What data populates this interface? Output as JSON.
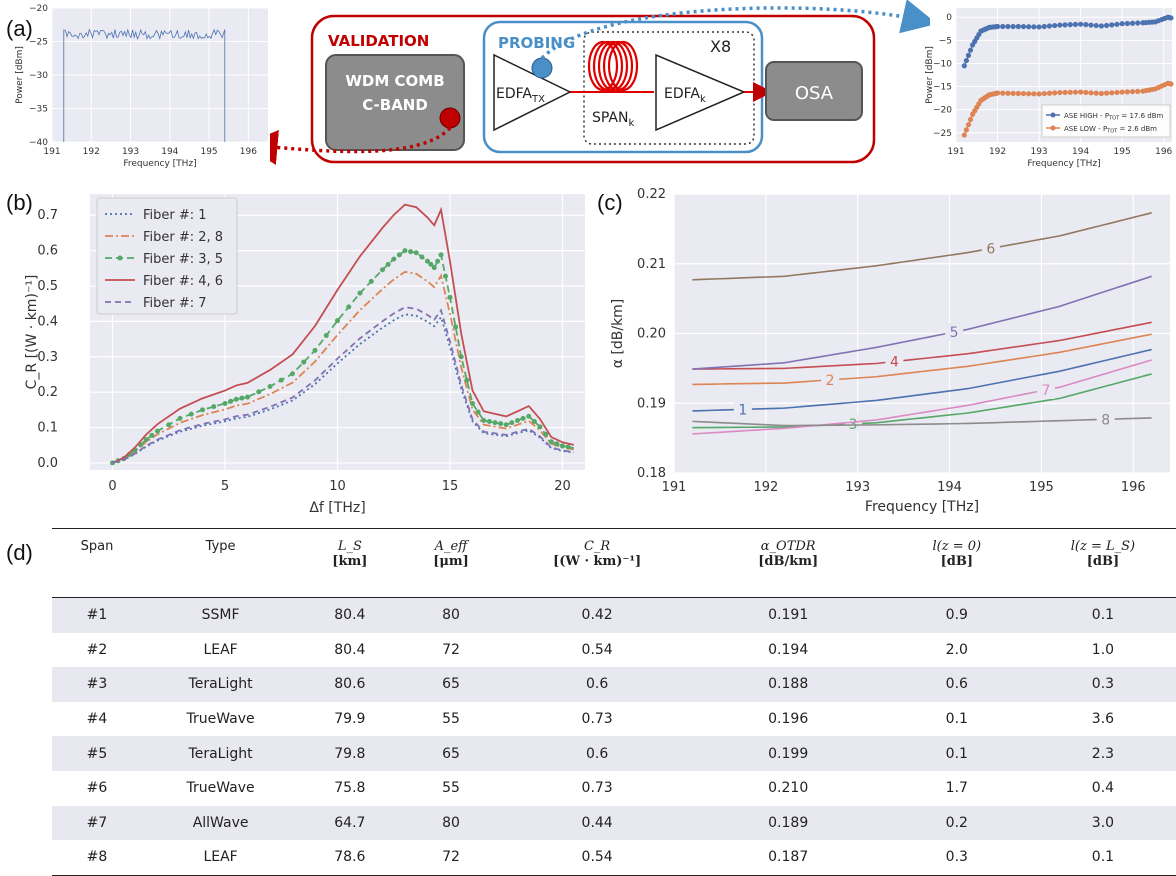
{
  "panel_labels": {
    "a": "(a)",
    "b": "(b)",
    "c": "(c)",
    "d": "(d)"
  },
  "setup": {
    "validation": "VALIDATION",
    "probing": "PROBING",
    "comb_line1": "WDM COMB",
    "comb_line2": "C-BAND",
    "edfa_tx": "EDFA",
    "edfa_tx_sub": "TX",
    "span": "SPAN",
    "span_sub": "k",
    "edfa_k": "EDFA",
    "edfa_k_sub": "k",
    "x8": "X8",
    "osa": "OSA",
    "colors": {
      "validation": "#c00000",
      "probing": "#4a90c8"
    }
  },
  "chart_data": [
    {
      "id": "a-left",
      "type": "line",
      "xlabel": "Frequency [THz]",
      "ylabel": "Power [dBm]",
      "xlim": [
        191,
        196.5
      ],
      "ylim": [
        -40,
        -20
      ],
      "xticks": [
        "191",
        "192",
        "193",
        "194",
        "195",
        "196"
      ],
      "yticks": [
        "−20",
        "−25",
        "−30",
        "−35",
        "−40"
      ],
      "series": [
        {
          "color": "#4c72b0",
          "x": [
            191.3,
            191.3,
            195.4,
            195.4
          ],
          "y": [
            -40,
            -23.3,
            -23.3,
            -40
          ]
        }
      ]
    },
    {
      "id": "a-right",
      "type": "line",
      "xlabel": "Frequency [THz]",
      "ylabel": "Power [dBm]",
      "xlim": [
        191,
        196.2
      ],
      "ylim": [
        -27,
        2
      ],
      "xticks": [
        "191",
        "192",
        "193",
        "194",
        "195",
        "196"
      ],
      "yticks": [
        "0",
        "−5",
        "−10",
        "−15",
        "−20",
        "−25"
      ],
      "legend": [
        "ASE HIGH - P",
        "ASE LOW - P"
      ],
      "legend_values": [
        "= 17.6 dBm",
        "= 2.6 dBm"
      ],
      "legend_sub": "TOT",
      "series": [
        {
          "name": "ASE HIGH - PTOT = 17.6 dBm",
          "color": "#4c72b0",
          "x": [
            191.2,
            191.4,
            191.6,
            191.8,
            192.0,
            192.5,
            193.0,
            193.5,
            194.0,
            194.5,
            195.0,
            195.5,
            195.8,
            196.1,
            196.2
          ],
          "y": [
            -10.5,
            -6,
            -3,
            -2.2,
            -2,
            -2,
            -2.1,
            -1.7,
            -1.5,
            -1.9,
            -1.4,
            -1.2,
            -1,
            0,
            -0.2
          ]
        },
        {
          "name": "ASE LOW - PTOT = 2.6 dBm",
          "color": "#dd8452",
          "x": [
            191.2,
            191.4,
            191.6,
            191.8,
            192.0,
            192.5,
            193.0,
            193.5,
            194.0,
            194.5,
            195.0,
            195.5,
            195.8,
            196.1,
            196.2
          ],
          "y": [
            -25.5,
            -21,
            -18,
            -16.8,
            -16.4,
            -16.5,
            -16.6,
            -16.3,
            -16.2,
            -16.5,
            -16.2,
            -16,
            -15.5,
            -14.3,
            -14.5
          ]
        }
      ]
    },
    {
      "id": "b",
      "type": "line",
      "xlabel": "Δf [THz]",
      "ylabel": "C_R [(W · km)⁻¹]",
      "xlim": [
        -1,
        21
      ],
      "ylim": [
        -0.02,
        0.76
      ],
      "xticks": [
        "0",
        "5",
        "10",
        "15",
        "20"
      ],
      "yticks": [
        "0.0",
        "0.1",
        "0.2",
        "0.3",
        "0.4",
        "0.5",
        "0.6",
        "0.7"
      ],
      "x": [
        0,
        0.5,
        1,
        1.5,
        2,
        3,
        4,
        5,
        5.5,
        6,
        7,
        8,
        9,
        10,
        11,
        12,
        12.5,
        13,
        13.5,
        14,
        14.3,
        14.6,
        15,
        15.5,
        16,
        16.5,
        17,
        17.5,
        18,
        18.5,
        19,
        19.5,
        20,
        20.5
      ],
      "series": [
        {
          "name": "Fiber #: 1",
          "color": "#4c72b0",
          "dash": "2,3",
          "peak": 0.42
        },
        {
          "name": "Fiber #: 2, 8",
          "color": "#dd8452",
          "dash": "8,3,2,3",
          "peak": 0.54
        },
        {
          "name": "Fiber #: 3, 5",
          "color": "#55a868",
          "dash": "7,4",
          "marker": true,
          "peak": 0.6
        },
        {
          "name": "Fiber #: 4, 6",
          "color": "#c44e52",
          "dash": "",
          "peak": 0.73
        },
        {
          "name": "Fiber #: 7",
          "color": "#8172b2",
          "dash": "6,4",
          "peak": 0.44
        }
      ],
      "shape": [
        0,
        0.02,
        0.06,
        0.11,
        0.15,
        0.21,
        0.25,
        0.28,
        0.3,
        0.31,
        0.36,
        0.42,
        0.53,
        0.67,
        0.8,
        0.91,
        0.96,
        1,
        0.99,
        0.95,
        0.92,
        0.98,
        0.78,
        0.5,
        0.28,
        0.2,
        0.19,
        0.18,
        0.2,
        0.22,
        0.17,
        0.1,
        0.08,
        0.07
      ]
    },
    {
      "id": "c",
      "type": "line",
      "xlabel": "Frequency [THz]",
      "ylabel": "α [dB/km]",
      "xlim": [
        191,
        196.4
      ],
      "ylim": [
        0.18,
        0.22
      ],
      "xticks": [
        "191",
        "192",
        "193",
        "194",
        "195",
        "196"
      ],
      "yticks": [
        "0.22",
        "0.21",
        "0.20",
        "0.19",
        "0.18"
      ],
      "series": [
        {
          "name": "1",
          "color": "#4c72b0",
          "y": [
            0.1889,
            0.1893,
            0.1904,
            0.1921,
            0.1946,
            0.1977
          ],
          "label_x": 191.75
        },
        {
          "name": "2",
          "color": "#dd8452",
          "y": [
            0.1927,
            0.1929,
            0.1938,
            0.1953,
            0.1973,
            0.1999
          ],
          "label_x": 192.7
        },
        {
          "name": "3",
          "color": "#55a868",
          "y": [
            0.1865,
            0.1866,
            0.1872,
            0.1886,
            0.1907,
            0.1942
          ],
          "label_x": 192.95
        },
        {
          "name": "4",
          "color": "#c44e52",
          "y": [
            0.1949,
            0.195,
            0.1957,
            0.1971,
            0.199,
            0.2016
          ],
          "label_x": 193.4
        },
        {
          "name": "5",
          "color": "#8172b2",
          "y": [
            0.1949,
            0.1958,
            0.198,
            0.2006,
            0.2039,
            0.2082
          ],
          "label_x": 194.05
        },
        {
          "name": "6",
          "color": "#937860",
          "y": [
            0.2077,
            0.2082,
            0.2097,
            0.2116,
            0.214,
            0.2173
          ],
          "label_x": 194.45
        },
        {
          "name": "7",
          "color": "#da8bc3",
          "y": [
            0.1856,
            0.1864,
            0.1876,
            0.1897,
            0.1923,
            0.1962
          ],
          "label_x": 195.05
        },
        {
          "name": "8",
          "color": "#8c8c8c",
          "y": [
            0.1874,
            0.1868,
            0.1869,
            0.1871,
            0.1875,
            0.1879
          ],
          "label_x": 195.7
        }
      ],
      "x": [
        191.2,
        192.2,
        193.2,
        194.2,
        195.2,
        196.2
      ]
    }
  ],
  "table": {
    "headers": [
      {
        "top": "Span",
        "sub": ""
      },
      {
        "top": "Type",
        "sub": ""
      },
      {
        "top": "L_S",
        "sub": "[km]"
      },
      {
        "top": "A_eff",
        "sub": "[μm]"
      },
      {
        "top": "C_R",
        "sub": "[(W · km)⁻¹]"
      },
      {
        "top": "α_OTDR",
        "sub": "[dB/km]"
      },
      {
        "top": "l(z = 0)",
        "sub": "[dB]"
      },
      {
        "top": "l(z = L_S)",
        "sub": "[dB]"
      }
    ],
    "rows": [
      [
        "#1",
        "SSMF",
        "80.4",
        "80",
        "0.42",
        "0.191",
        "0.9",
        "0.1"
      ],
      [
        "#2",
        "LEAF",
        "80.4",
        "72",
        "0.54",
        "0.194",
        "2.0",
        "1.0"
      ],
      [
        "#3",
        "TeraLight",
        "80.6",
        "65",
        "0.6",
        "0.188",
        "0.6",
        "0.3"
      ],
      [
        "#4",
        "TrueWave",
        "79.9",
        "55",
        "0.73",
        "0.196",
        "0.1",
        "3.6"
      ],
      [
        "#5",
        "TeraLight",
        "79.8",
        "65",
        "0.6",
        "0.199",
        "0.1",
        "2.3"
      ],
      [
        "#6",
        "TrueWave",
        "75.8",
        "55",
        "0.73",
        "0.210",
        "1.7",
        "0.4"
      ],
      [
        "#7",
        "AllWave",
        "64.7",
        "80",
        "0.44",
        "0.189",
        "0.2",
        "3.0"
      ],
      [
        "#8",
        "LEAF",
        "78.6",
        "72",
        "0.54",
        "0.187",
        "0.3",
        "0.1"
      ]
    ]
  }
}
